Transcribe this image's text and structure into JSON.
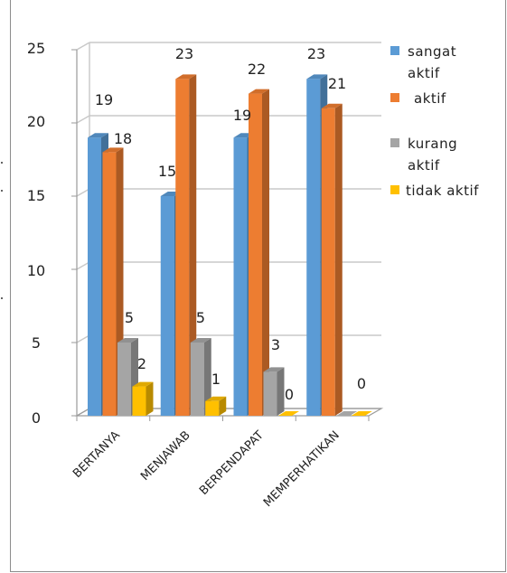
{
  "chart_data": {
    "type": "bar",
    "style": "3d-clustered-column",
    "categories": [
      "BERTANYA",
      "MENJAWAB",
      "BERPENDAPAT",
      "MEMPERHATIKAN"
    ],
    "series": [
      {
        "name": "sangat aktif",
        "color": "#5b9bd5",
        "values": [
          19,
          15,
          19,
          23
        ]
      },
      {
        "name": "aktif",
        "color": "#ed7d31",
        "values": [
          18,
          23,
          22,
          21
        ]
      },
      {
        "name": "kurang aktif",
        "color": "#a5a5a5",
        "values": [
          5,
          5,
          3,
          0
        ]
      },
      {
        "name": "tidak aktif",
        "color": "#ffc000",
        "values": [
          2,
          1,
          0,
          0
        ]
      }
    ],
    "data_labels": [
      [
        "19",
        "18",
        "5",
        "2"
      ],
      [
        "15",
        "23",
        "5",
        "1"
      ],
      [
        "19",
        "22",
        "3",
        "0"
      ],
      [
        "23",
        "21",
        "",
        "0"
      ]
    ],
    "yticks": [
      "0",
      "5",
      "10",
      "15",
      "20",
      "25"
    ],
    "ylim": [
      0,
      25
    ],
    "grid": true,
    "legend_position": "right",
    "title": "",
    "xlabel": "",
    "ylabel": ""
  }
}
